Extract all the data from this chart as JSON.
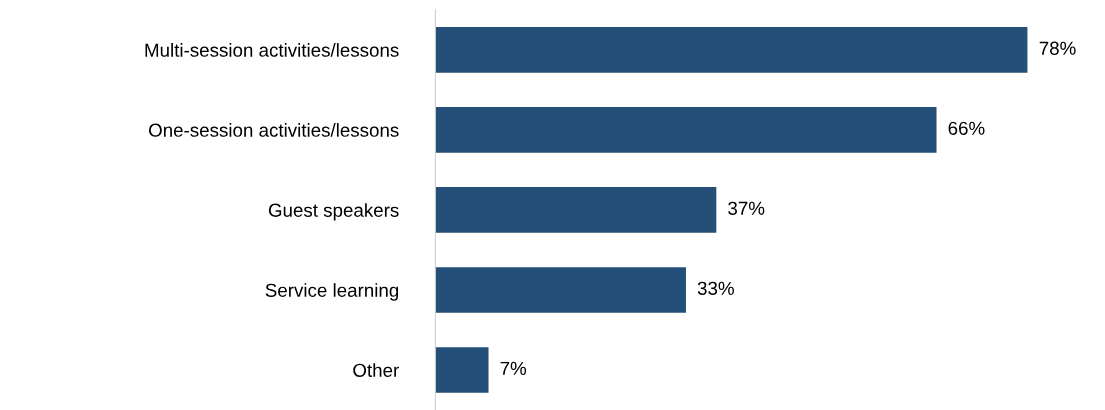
{
  "chart_data": {
    "type": "bar",
    "orientation": "horizontal",
    "categories": [
      "Multi-session activities/lessons",
      "One-session activities/lessons",
      "Guest speakers",
      "Service learning",
      "Other"
    ],
    "values": [
      78,
      66,
      37,
      33,
      7
    ],
    "value_labels": [
      "78%",
      "66%",
      "37%",
      "33%",
      "7%"
    ],
    "color": "#234f78",
    "grid": false,
    "legend": false
  }
}
